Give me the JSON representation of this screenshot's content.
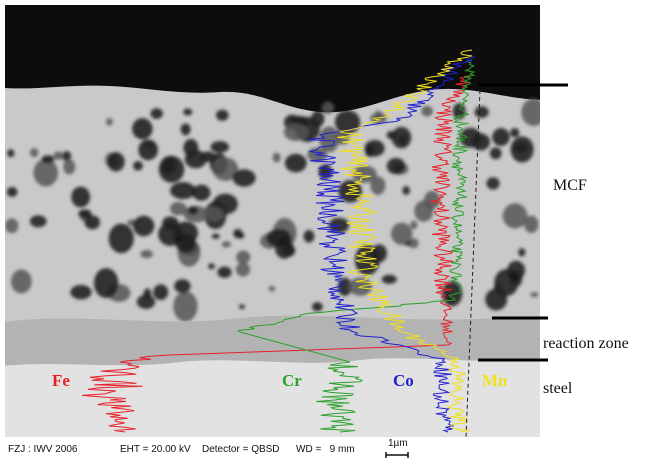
{
  "labels": {
    "mcf": "MCF",
    "reaction_zone": "reaction zone",
    "steel": "steel"
  },
  "elements": [
    {
      "name": "Fe",
      "color": "#e8202a"
    },
    {
      "name": "Cr",
      "color": "#2ca02c"
    },
    {
      "name": "Co",
      "color": "#2020d0"
    },
    {
      "name": "Mn",
      "color": "#f0e020"
    }
  ],
  "footer": {
    "lab": "FZJ : IWV 2006",
    "eht": "EHT = 20.00 kV",
    "detector": "Detector = QBSD",
    "wd": "WD =   9 mm",
    "scale": "1µm"
  }
}
